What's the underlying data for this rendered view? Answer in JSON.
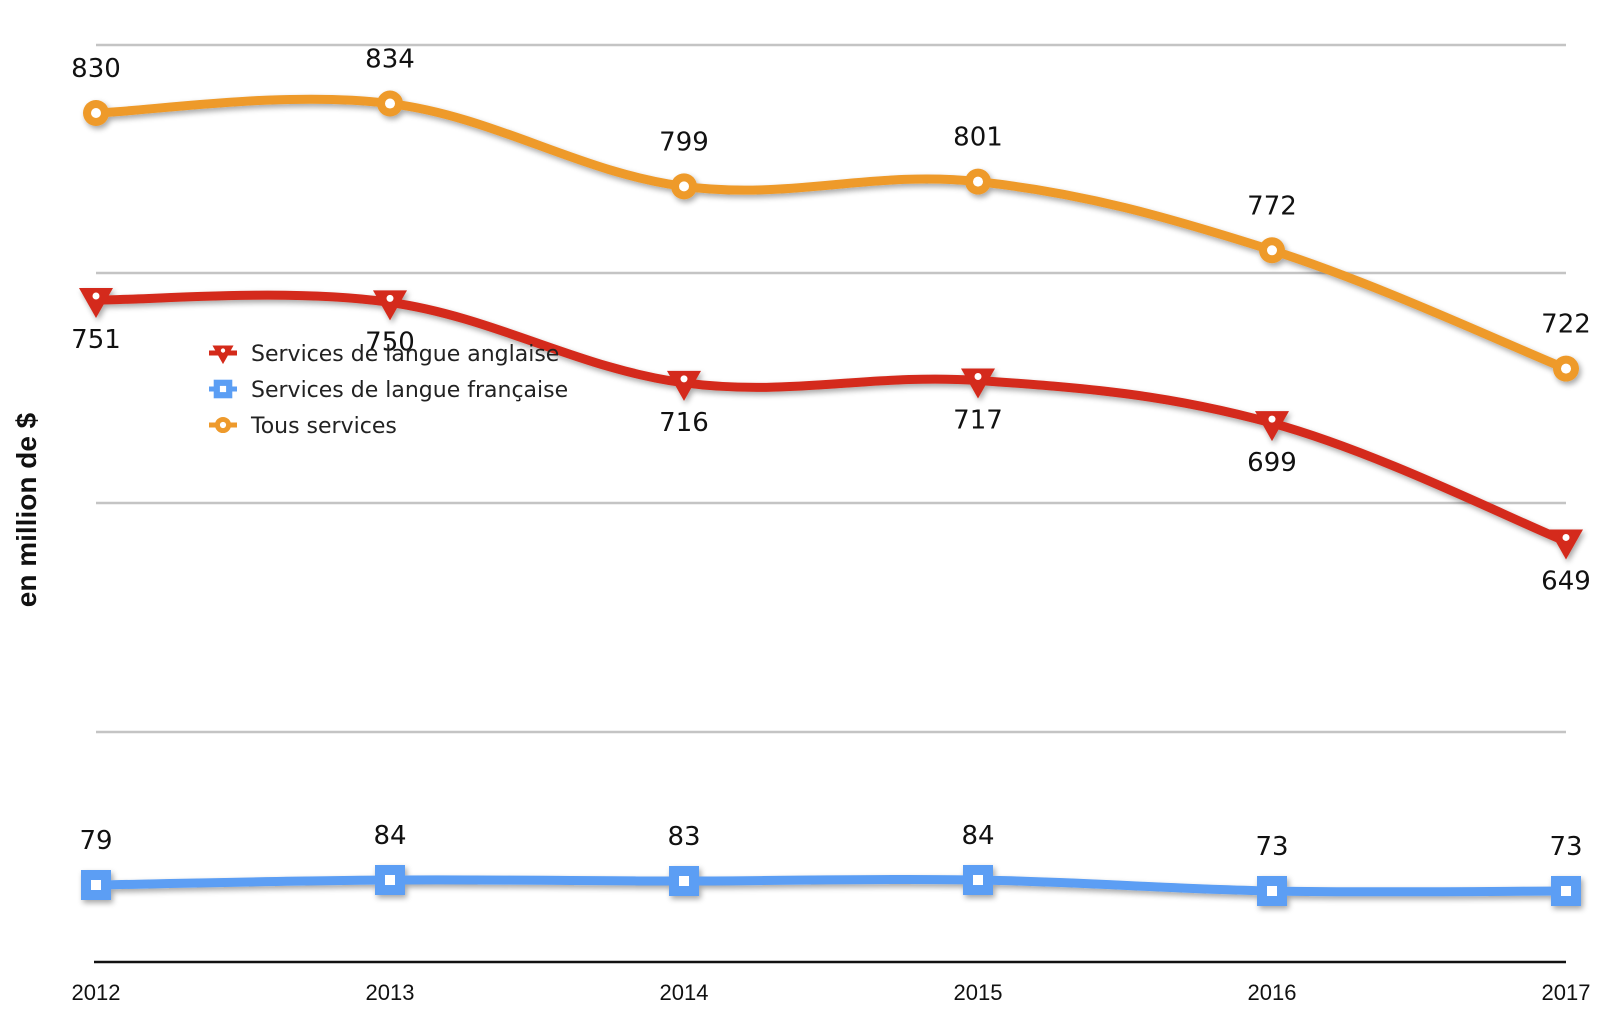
{
  "chart_data": {
    "type": "line",
    "title": "",
    "xlabel": "",
    "ylabel": "en million de $",
    "x": [
      "2012",
      "2013",
      "2014",
      "2015",
      "2016",
      "2017"
    ],
    "grid": true,
    "legend_position": "upper-left",
    "series": [
      {
        "name": "Services de langue anglaise",
        "values": [
          751,
          750,
          716,
          717,
          699,
          649
        ],
        "color": "#d42a1a",
        "marker": "triangle-down"
      },
      {
        "name": "Services de langue française",
        "values": [
          79,
          84,
          83,
          84,
          73,
          73
        ],
        "color": "#5b9ef4",
        "marker": "square"
      },
      {
        "name": "Tous services",
        "values": [
          830,
          834,
          799,
          801,
          772,
          722
        ],
        "color": "#ee9a2c",
        "marker": "circle"
      }
    ]
  }
}
